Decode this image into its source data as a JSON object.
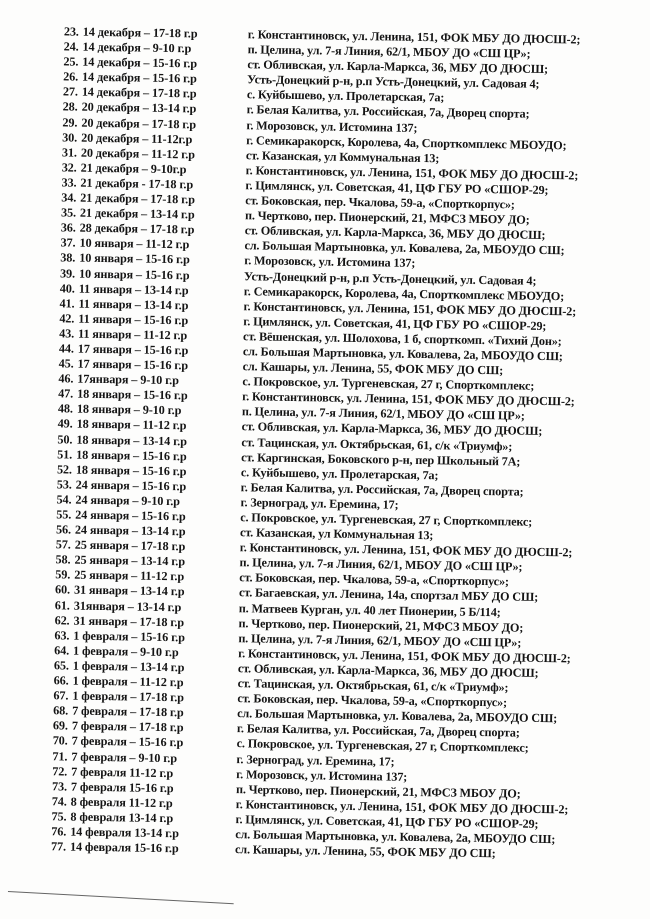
{
  "document": {
    "rows": [
      {
        "num": "23.",
        "schedule": "14 декабря – 17-18 г.р",
        "venue": "г. Константиновск, ул. Ленина, 151, ФОК МБУ ДО ДЮСШ-2;"
      },
      {
        "num": "24.",
        "schedule": "14 декабря – 9-10 г.р",
        "venue": "п. Целина, ул. 7-я Линия, 62/1, МБОУ ДО «СШ ЦР»;"
      },
      {
        "num": "25.",
        "schedule": "14 декабря – 15-16 г.р",
        "venue": "ст. Обливская, ул. Карла-Маркса, 36, МБУ ДО ДЮСШ;"
      },
      {
        "num": "26.",
        "schedule": "14 декабря – 15-16 г.р",
        "venue": "Усть-Донецкий р-н, р.п Усть-Донецкий, ул. Садовая 4;"
      },
      {
        "num": "27.",
        "schedule": "14 декабря – 17-18 г.р",
        "venue": "с. Куйбышево, ул. Пролетарская, 7а;"
      },
      {
        "num": "28.",
        "schedule": "20 декабря – 13-14 г.р",
        "venue": "г. Белая Калитва, ул. Российская, 7а, Дворец спорта;"
      },
      {
        "num": "29.",
        "schedule": "20 декабря – 17-18 г.р",
        "venue": "г. Морозовск, ул. Истомина 137;"
      },
      {
        "num": "30.",
        "schedule": "20 декабря – 11-12г.р",
        "venue": "г. Семикаракорск, Королева, 4а, Спорткомплекс МБОУДО;"
      },
      {
        "num": "31.",
        "schedule": "20 декабря – 11-12 г.р",
        "venue": "ст. Казанская, ул Коммунальная 13;"
      },
      {
        "num": "32.",
        "schedule": "21 декабря – 9-10г.р",
        "venue": "г. Константиновск, ул. Ленина, 151, ФОК МБУ ДО ДЮСШ-2;"
      },
      {
        "num": "33.",
        "schedule": "21 декабря -  17-18 г.р",
        "venue": "г. Цимлянск, ул. Советская, 41, ЦФ ГБУ РО «СШОР-29;"
      },
      {
        "num": "34.",
        "schedule": "21 декабря – 17-18 г.р",
        "venue": "ст. Боковская, пер. Чкалова, 59-а, «Спорткорпус»;"
      },
      {
        "num": "35.",
        "schedule": "21 декабря – 13-14 г.р",
        "venue": "п. Чертково, пер. Пионерский, 21, МФСЗ МБОУ ДО;"
      },
      {
        "num": "36.",
        "schedule": "28 декабря – 17-18 г.р",
        "venue": "ст. Обливская, ул. Карла-Маркса, 36, МБУ ДО ДЮСШ;"
      },
      {
        "num": "37.",
        "schedule": "10 января – 11-12 г.р",
        "venue": "сл. Большая Мартыновка, ул. Ковалева, 2а, МБОУДО СШ;"
      },
      {
        "num": "38.",
        "schedule": "10 января – 15-16 г.р",
        "venue": "г. Морозовск, ул. Истомина 137;"
      },
      {
        "num": "39.",
        "schedule": "10 января – 15-16 г.р",
        "venue": "Усть-Донецкий р-н, р.п Усть-Донецкий, ул. Садовая 4;"
      },
      {
        "num": "40.",
        "schedule": "11 января – 13-14 г.р",
        "venue": "г. Семикаракорск, Королева, 4а, Спорткомплекс МБОУДО;"
      },
      {
        "num": "41.",
        "schedule": "11 января – 13-14 г.р",
        "venue": "г. Константиновск, ул. Ленина, 151, ФОК МБУ ДО ДЮСШ-2;"
      },
      {
        "num": "42.",
        "schedule": "11 января – 15-16 г.р",
        "venue": "г. Цимлянск, ул. Советская, 41, ЦФ ГБУ РО «СШОР-29;"
      },
      {
        "num": "43.",
        "schedule": "11 января – 11-12 г.р",
        "venue": "ст. Вёшенская, ул. Шолохова, 1 б, спорткомп. «Тихий Дон»;"
      },
      {
        "num": "44.",
        "schedule": "17 января – 15-16 г.р",
        "venue": "сл. Большая Мартыновка, ул. Ковалева, 2а, МБОУДО СШ;"
      },
      {
        "num": "45.",
        "schedule": "17 января – 15-16 г.р",
        "venue": "сл. Кашары, ул. Ленина, 55, ФОК МБУ ДО СШ;"
      },
      {
        "num": "46.",
        "schedule": "17января – 9-10 г.р",
        "venue": "с. Покровское, ул. Тургеневская, 27 г, Спорткомплекс;"
      },
      {
        "num": "47.",
        "schedule": "18 января – 15-16 г.р",
        "venue": "г. Константиновск, ул. Ленина, 151, ФОК МБУ ДО ДЮСШ-2;"
      },
      {
        "num": "48.",
        "schedule": "18 января – 9-10 г.р",
        "venue": "п. Целина, ул. 7-я Линия, 62/1, МБОУ ДО «СШ ЦР»;"
      },
      {
        "num": "49.",
        "schedule": "18 января – 11-12 г.р",
        "venue": "ст. Обливская, ул. Карла-Маркса, 36, МБУ ДО ДЮСШ;"
      },
      {
        "num": "50.",
        "schedule": "18 января – 13-14 г.р",
        "venue": "ст. Тацинская, ул. Октябрьская, 61, с/к «Триумф»;"
      },
      {
        "num": "51.",
        "schedule": "18 января – 15-16 г.р",
        "venue": "ст. Каргинская, Боковского р-н, пер Школьный 7А;"
      },
      {
        "num": "52.",
        "schedule": "18 января – 15-16 г.р",
        "venue": "с. Куйбышево, ул. Пролетарская, 7а;"
      },
      {
        "num": "53.",
        "schedule": "24 января – 15-16 г.р",
        "venue": "г. Белая Калитва, ул. Российская, 7а, Дворец спорта;"
      },
      {
        "num": "54.",
        "schedule": "24 января – 9-10 г.р",
        "venue": "г. Зерноград, ул. Еремина, 17;"
      },
      {
        "num": "55.",
        "schedule": "24 января – 15-16 г.р",
        "venue": "с. Покровское, ул. Тургеневская, 27 г, Спорткомплекс;"
      },
      {
        "num": "56.",
        "schedule": "24 января – 13-14 г.р",
        "venue": "ст. Казанская, ул Коммунальная 13;"
      },
      {
        "num": "57.",
        "schedule": "25 января – 17-18 г.р",
        "venue": "г. Константиновск, ул. Ленина, 151, ФОК МБУ ДО ДЮСШ-2;"
      },
      {
        "num": "58.",
        "schedule": "25 января – 13-14 г.р",
        "venue": "п. Целина, ул. 7-я Линия, 62/1, МБОУ ДО «СШ ЦР»;"
      },
      {
        "num": "59.",
        "schedule": "25 января – 11-12 г.р",
        "venue": "ст. Боковская, пер. Чкалова, 59-а, «Спорткорпус»;"
      },
      {
        "num": "60.",
        "schedule": "31 января – 13-14 г.р",
        "venue": "ст. Багаевская, ул. Ленина, 14а, спортзал МБУ ДО СШ;"
      },
      {
        "num": "61.",
        "schedule": "31января – 13-14 г.р",
        "venue": "п. Матвеев Курган, ул. 40 лет Пионерии, 5 Б/114;"
      },
      {
        "num": "62.",
        "schedule": "31 января – 17-18 г.р",
        "venue": "п. Чертково, пер. Пионерский, 21, МФСЗ МБОУ ДО;"
      },
      {
        "num": "63.",
        "schedule": "1 февраля – 15-16 г.р",
        "venue": "п. Целина, ул. 7-я Линия, 62/1, МБОУ ДО «СШ ЦР»;"
      },
      {
        "num": "64.",
        "schedule": "1 февраля – 9-10 г.р",
        "venue": "г. Константиновск, ул. Ленина, 151, ФОК МБУ ДО ДЮСШ-2;"
      },
      {
        "num": "65.",
        "schedule": "1 февраля – 13-14 г.р",
        "venue": "ст. Обливская, ул. Карла-Маркса, 36, МБУ ДО ДЮСШ;"
      },
      {
        "num": "66.",
        "schedule": "1 февраля – 11-12 г.р",
        "venue": "ст. Тацинская, ул. Октябрьская, 61, с/к «Триумф»;"
      },
      {
        "num": "67.",
        "schedule": "1 февраля – 17-18 г.р",
        "venue": "ст. Боковская, пер. Чкалова, 59-а, «Спорткорпус»;"
      },
      {
        "num": "68.",
        "schedule": "7 февраля – 17-18 г.р",
        "venue": "сл. Большая Мартыновка, ул. Ковалева, 2а, МБОУДО СШ;"
      },
      {
        "num": "69.",
        "schedule": "7 февраля – 17-18 г.р",
        "venue": "г. Белая Калитва, ул. Российская, 7а, Дворец спорта;"
      },
      {
        "num": "70.",
        "schedule": "7 февраля – 15-16 г.р",
        "venue": "с. Покровское, ул. Тургеневская, 27 г, Спорткомплекс;"
      },
      {
        "num": "71.",
        "schedule": "7 февраля – 9-10 г.р",
        "venue": "г. Зерноград, ул. Еремина, 17;"
      },
      {
        "num": "72.",
        "schedule": "7 февраля 11-12 г.р",
        "venue": "г. Морозовск, ул. Истомина 137;"
      },
      {
        "num": "73.",
        "schedule": "7 февраля 15-16 г.р",
        "venue": "п. Чертково, пер. Пионерский, 21, МФСЗ МБОУ ДО;"
      },
      {
        "num": "74.",
        "schedule": "8 февраля 11-12 г.р",
        "venue": "г. Константиновск, ул. Ленина, 151, ФОК МБУ ДО ДЮСШ-2;"
      },
      {
        "num": "75.",
        "schedule": "8 февраля 13-14 г.р",
        "venue": "г. Цимлянск, ул. Советская, 41, ЦФ ГБУ РО «СШОР-29;"
      },
      {
        "num": "76.",
        "schedule": "14 февраля 13-14 г.р",
        "venue": "сл. Большая Мартыновка, ул. Ковалева, 2а, МБОУДО СШ;"
      },
      {
        "num": "77.",
        "schedule": "14 февраля 15-16 г.р",
        "venue": "сл. Кашары, ул. Ленина, 55, ФОК МБУ ДО СШ;"
      }
    ],
    "text_color": "#141414",
    "paper_color": "#fdfdfc"
  }
}
